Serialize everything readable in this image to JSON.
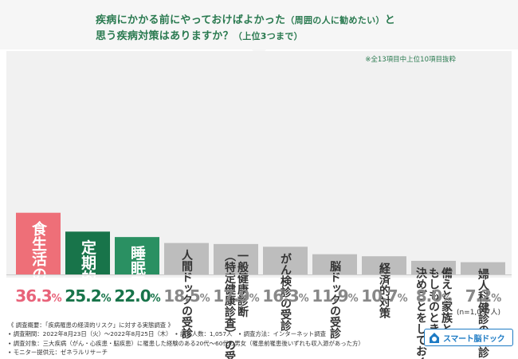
{
  "title": {
    "line1_main": "疾病にかかる前にやっておけばよかった",
    "line1_paren": "（周囲の人に勧めたい）",
    "line1_end": "と",
    "line2_main": "思う疾病対策はありますか？",
    "line2_paren": "（上位3つまで）"
  },
  "note": "※全13項目中上位10項目抜粋",
  "sample_size": "(n=1,057人)",
  "colors": {
    "top1": "#ee6f78",
    "top2": "#18744a",
    "top3": "#2a9062",
    "other": "#bdbdbd",
    "top1_value": "#e8637a",
    "top23_value": "#18744a",
    "other_value": "#888888",
    "label_on_color": "#ffffff",
    "label_on_gray": "#333333"
  },
  "chart_data": {
    "type": "bar",
    "title": "疾病にかかる前にやっておけばよかった（周囲の人に勧めたい）と思う疾病対策はありますか？（上位3つまで）",
    "unit": "%",
    "ylim": [
      0,
      40
    ],
    "grid": false,
    "categories": [
      {
        "lines": [
          "食生活の改善"
        ]
      },
      {
        "lines": [
          "定期的な運動習慣"
        ]
      },
      {
        "lines": [
          "睡眠習慣の改善"
        ]
      },
      {
        "lines": [
          "人間ドックの受診"
        ]
      },
      {
        "lines": [
          "一般健康診断",
          "（特定健康診査）の受診"
        ]
      },
      {
        "lines": [
          "がん検診の受診"
        ]
      },
      {
        "lines": [
          "脳ドックの受診"
        ]
      },
      {
        "lines": [
          "経済的対策"
        ]
      },
      {
        "lines": [
          "備えと家族との",
          "もしものときに",
          "決めごとをしておく"
        ]
      },
      {
        "lines": [
          "婦人科健診の受診"
        ]
      }
    ],
    "values": [
      36.3,
      25.2,
      22.0,
      18.5,
      17.9,
      16.3,
      11.9,
      10.7,
      8.0,
      7.2
    ],
    "value_labels": [
      "36.3%",
      "25.2%",
      "22.0%",
      "18.5%",
      "17.9%",
      "16.3%",
      "11.9%",
      "10.7%",
      "8.0%",
      "7.2%"
    ]
  },
  "footer": {
    "line1": "《 調査概要：「疾病罹患の経済的リスク」に対する実態調査 》",
    "line2": "• 調査期間：2022年8月23日（火）～2022年8月25日（木）　• 調査人数：1,057人　• 調査方法：インターネット調査",
    "line3": "• 調査対象：三大疾病（がん・心疾患・脳疾患）に罹患した経験のある20代～60代の男女（罹患前罹患後いずれも収入源があった方）",
    "line4": "• モニター提供元：ゼネラルリサーチ"
  },
  "logo": {
    "text": "スマート脳ドック",
    "icon": "brain-house-icon"
  }
}
